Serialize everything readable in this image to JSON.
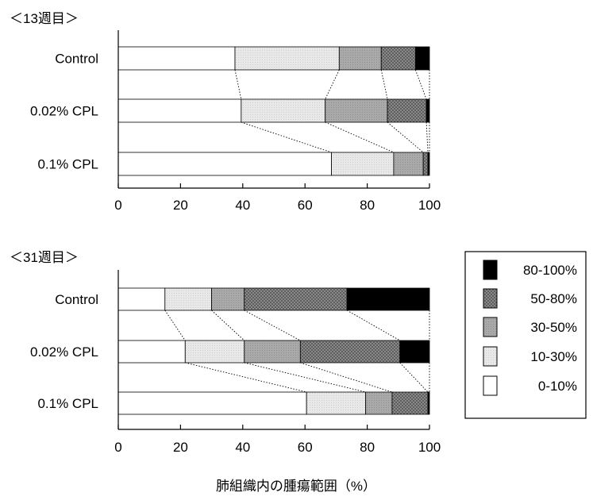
{
  "chart_data": {
    "type": "bar",
    "stacked": true,
    "orientation": "horizontal",
    "xlabel": "肺組織内の腫瘍範囲（%）",
    "xlim": [
      0,
      100
    ],
    "xticks": [
      0,
      20,
      40,
      60,
      80,
      100
    ],
    "legend_position": "right",
    "legend": [
      {
        "label": "80-100%",
        "color": "#000000",
        "pattern": "solid"
      },
      {
        "label": "50-80%",
        "color": "#7d7d7d",
        "pattern": "checker-dark"
      },
      {
        "label": "30-50%",
        "color": "#a6a6a6",
        "pattern": "grey"
      },
      {
        "label": "10-30%",
        "color": "#e6e6e6",
        "pattern": "light"
      },
      {
        "label": "0-10%",
        "color": "#ffffff",
        "pattern": "white"
      }
    ],
    "panels": [
      {
        "title": "＜13週目＞",
        "categories": [
          "Control",
          "0.02% CPL",
          "0.1% CPL"
        ],
        "series": [
          {
            "name": "0-10%",
            "values": [
              37.5,
              39.5,
              68.5
            ]
          },
          {
            "name": "10-30%",
            "values": [
              33.5,
              27.0,
              20.0
            ]
          },
          {
            "name": "30-50%",
            "values": [
              13.5,
              20.0,
              9.5
            ]
          },
          {
            "name": "50-80%",
            "values": [
              11.0,
              12.5,
              1.5
            ]
          },
          {
            "name": "80-100%",
            "values": [
              4.5,
              1.0,
              0.5
            ]
          }
        ]
      },
      {
        "title": "＜31週目＞",
        "categories": [
          "Control",
          "0.02% CPL",
          "0.1% CPL"
        ],
        "series": [
          {
            "name": "0-10%",
            "values": [
              15.0,
              21.5,
              60.5
            ]
          },
          {
            "name": "10-30%",
            "values": [
              15.0,
              19.0,
              19.0
            ]
          },
          {
            "name": "30-50%",
            "values": [
              10.5,
              18.0,
              8.5
            ]
          },
          {
            "name": "50-80%",
            "values": [
              33.0,
              32.0,
              11.5
            ]
          },
          {
            "name": "80-100%",
            "values": [
              26.5,
              9.5,
              0.5
            ]
          }
        ]
      }
    ]
  }
}
